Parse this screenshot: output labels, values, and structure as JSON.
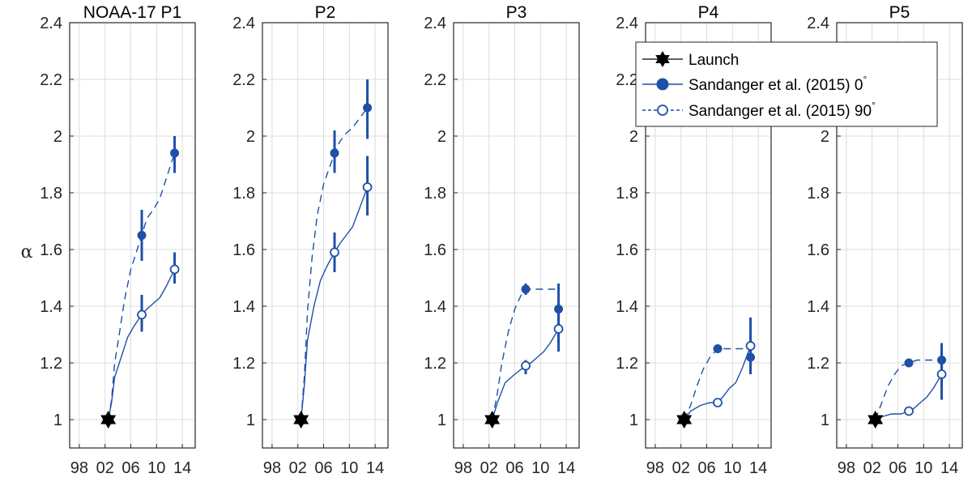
{
  "colors": {
    "series": "#1f4fa8",
    "launch": "#000000",
    "grid": "#dcdcdc",
    "axis": "#262626"
  },
  "ylabel": "α",
  "legend": {
    "placement": "top-right of P4 panel",
    "launch": "Launch",
    "entry_0deg": "Sandanger et al. (2015) 0",
    "entry_90deg": "Sandanger et al. (2015) 90",
    "degree_mark": "°"
  },
  "chart_data": [
    {
      "type": "line",
      "title": "NOAA-17 P1",
      "xlim": [
        1996.5,
        2016
      ],
      "xticks": [
        1998,
        2002,
        2006,
        2010,
        2014
      ],
      "xtick_labels": [
        "98",
        "02",
        "06",
        "10",
        "14"
      ],
      "ylim": [
        0.9,
        2.4
      ],
      "yticks": [
        1,
        1.2,
        1.4,
        1.6,
        1.8,
        2,
        2.2,
        2.4
      ],
      "ytick_labels": [
        "1",
        "1.2",
        "1.4",
        "1.6",
        "1.8",
        "2",
        "2.2",
        "2.4"
      ],
      "grid": true,
      "launch": {
        "x": 2002.5,
        "y": 1
      },
      "series": [
        {
          "name": "Sandanger et al. (2015) 0°",
          "style": "dashed",
          "marker": "filled",
          "curve": [
            [
              2002.5,
              1
            ],
            [
              2003,
              1.07
            ],
            [
              2003.5,
              1.2
            ],
            [
              2004.2,
              1.3
            ],
            [
              2005,
              1.42
            ],
            [
              2006,
              1.53
            ],
            [
              2007.7,
              1.65
            ],
            [
              2008.5,
              1.71
            ],
            [
              2009.5,
              1.74
            ],
            [
              2010.5,
              1.78
            ],
            [
              2011.5,
              1.85
            ],
            [
              2012.8,
              1.94
            ]
          ],
          "points": [
            {
              "x": 2007.7,
              "y": 1.65,
              "err": [
                1.56,
                1.74
              ]
            },
            {
              "x": 2012.8,
              "y": 1.94,
              "err": [
                1.87,
                2.0
              ]
            }
          ]
        },
        {
          "name": "Sandanger et al. (2015) 90°",
          "style": "solid",
          "marker": "open",
          "curve": [
            [
              2002.5,
              1
            ],
            [
              2003,
              1.06
            ],
            [
              2003.5,
              1.15
            ],
            [
              2004.5,
              1.22
            ],
            [
              2005.5,
              1.29
            ],
            [
              2006.5,
              1.33
            ],
            [
              2007.7,
              1.37
            ],
            [
              2008.5,
              1.39
            ],
            [
              2009.5,
              1.41
            ],
            [
              2010.5,
              1.43
            ],
            [
              2011.5,
              1.47
            ],
            [
              2012.8,
              1.53
            ]
          ],
          "points": [
            {
              "x": 2007.7,
              "y": 1.37,
              "err": [
                1.31,
                1.44
              ]
            },
            {
              "x": 2012.8,
              "y": 1.53,
              "err": [
                1.48,
                1.59
              ]
            }
          ]
        }
      ]
    },
    {
      "type": "line",
      "title": "P2",
      "xlim": [
        1996.5,
        2016
      ],
      "xticks": [
        1998,
        2002,
        2006,
        2010,
        2014
      ],
      "xtick_labels": [
        "98",
        "02",
        "06",
        "10",
        "14"
      ],
      "ylim": [
        0.9,
        2.4
      ],
      "yticks": [
        1,
        1.2,
        1.4,
        1.6,
        1.8,
        2,
        2.2,
        2.4
      ],
      "ytick_labels": [
        "1",
        "1.2",
        "1.4",
        "1.6",
        "1.8",
        "2",
        "2.2",
        "2.4"
      ],
      "grid": true,
      "launch": {
        "x": 2002.5,
        "y": 1
      },
      "series": [
        {
          "name": "Sandanger et al. (2015) 0°",
          "style": "dashed",
          "marker": "filled",
          "curve": [
            [
              2002.5,
              1
            ],
            [
              2003,
              1.15
            ],
            [
              2003.5,
              1.38
            ],
            [
              2004.2,
              1.57
            ],
            [
              2005,
              1.72
            ],
            [
              2006,
              1.83
            ],
            [
              2007.7,
              1.94
            ],
            [
              2008.5,
              1.98
            ],
            [
              2009.5,
              2.01
            ],
            [
              2010.5,
              2.03
            ],
            [
              2011.5,
              2.06
            ],
            [
              2012.8,
              2.1
            ]
          ],
          "points": [
            {
              "x": 2007.7,
              "y": 1.94,
              "err": [
                1.87,
                2.02
              ]
            },
            {
              "x": 2012.8,
              "y": 2.1,
              "err": [
                1.99,
                2.2
              ]
            }
          ]
        },
        {
          "name": "Sandanger et al. (2015) 90°",
          "style": "solid",
          "marker": "open",
          "curve": [
            [
              2002.5,
              1
            ],
            [
              2003,
              1.12
            ],
            [
              2003.5,
              1.28
            ],
            [
              2004.5,
              1.4
            ],
            [
              2005.5,
              1.49
            ],
            [
              2006.5,
              1.54
            ],
            [
              2007.7,
              1.59
            ],
            [
              2008.5,
              1.62
            ],
            [
              2009.5,
              1.65
            ],
            [
              2010.5,
              1.68
            ],
            [
              2011.5,
              1.74
            ],
            [
              2012.8,
              1.82
            ]
          ],
          "points": [
            {
              "x": 2007.7,
              "y": 1.59,
              "err": [
                1.52,
                1.66
              ]
            },
            {
              "x": 2012.8,
              "y": 1.82,
              "err": [
                1.72,
                1.93
              ]
            }
          ]
        }
      ]
    },
    {
      "type": "line",
      "title": "P3",
      "xlim": [
        1996.5,
        2016
      ],
      "xticks": [
        1998,
        2002,
        2006,
        2010,
        2014
      ],
      "xtick_labels": [
        "98",
        "02",
        "06",
        "10",
        "14"
      ],
      "ylim": [
        0.9,
        2.4
      ],
      "yticks": [
        1,
        1.2,
        1.4,
        1.6,
        1.8,
        2,
        2.2,
        2.4
      ],
      "ytick_labels": [
        "1",
        "1.2",
        "1.4",
        "1.6",
        "1.8",
        "2",
        "2.2",
        "2.4"
      ],
      "grid": true,
      "launch": {
        "x": 2002.5,
        "y": 1
      },
      "series": [
        {
          "name": "Sandanger et al. (2015) 0°",
          "style": "dashed",
          "marker": "filled",
          "curve": [
            [
              2002.5,
              1
            ],
            [
              2003.2,
              1.08
            ],
            [
              2004,
              1.2
            ],
            [
              2005,
              1.31
            ],
            [
              2006,
              1.39
            ],
            [
              2007,
              1.44
            ],
            [
              2007.7,
              1.46
            ],
            [
              2009,
              1.46
            ],
            [
              2010.5,
              1.46
            ],
            [
              2012.8,
              1.46
            ]
          ],
          "points": [
            {
              "x": 2007.7,
              "y": 1.46,
              "err": [
                1.44,
                1.48
              ]
            },
            {
              "x": 2012.8,
              "y": 1.39,
              "err": [
                1.29,
                1.48
              ]
            }
          ]
        },
        {
          "name": "Sandanger et al. (2015) 90°",
          "style": "solid",
          "marker": "open",
          "curve": [
            [
              2002.5,
              1
            ],
            [
              2003.3,
              1.06
            ],
            [
              2004.5,
              1.13
            ],
            [
              2006,
              1.16
            ],
            [
              2007.7,
              1.19
            ],
            [
              2008.5,
              1.2
            ],
            [
              2009.5,
              1.22
            ],
            [
              2010.5,
              1.24
            ],
            [
              2011.5,
              1.27
            ],
            [
              2012.8,
              1.32
            ]
          ],
          "points": [
            {
              "x": 2007.7,
              "y": 1.19,
              "err": [
                1.16,
                1.21
              ]
            },
            {
              "x": 2012.8,
              "y": 1.32,
              "err": [
                1.24,
                1.39
              ]
            }
          ]
        }
      ]
    },
    {
      "type": "line",
      "title": "P4",
      "xlim": [
        1996.5,
        2016
      ],
      "xticks": [
        1998,
        2002,
        2006,
        2010,
        2014
      ],
      "xtick_labels": [
        "98",
        "02",
        "06",
        "10",
        "14"
      ],
      "ylim": [
        0.9,
        2.4
      ],
      "yticks": [
        1,
        1.2,
        1.4,
        1.6,
        1.8,
        2,
        2.2,
        2.4
      ],
      "ytick_labels": [
        "1",
        "1.2",
        "1.4",
        "1.6",
        "1.8",
        "2",
        "2.2",
        "2.4"
      ],
      "grid": true,
      "launch": {
        "x": 2002.5,
        "y": 1
      },
      "series": [
        {
          "name": "Sandanger et al. (2015) 0°",
          "style": "dashed",
          "marker": "filled",
          "curve": [
            [
              2002.5,
              1
            ],
            [
              2003.5,
              1.05
            ],
            [
              2004.5,
              1.12
            ],
            [
              2005.5,
              1.18
            ],
            [
              2006.5,
              1.22
            ],
            [
              2007.7,
              1.25
            ],
            [
              2009,
              1.25
            ],
            [
              2010.5,
              1.25
            ],
            [
              2012.8,
              1.25
            ]
          ],
          "points": [
            {
              "x": 2007.7,
              "y": 1.25,
              "err": [
                1.24,
                1.26
              ]
            },
            {
              "x": 2012.8,
              "y": 1.22,
              "err": [
                1.16,
                1.28
              ]
            }
          ]
        },
        {
          "name": "Sandanger et al. (2015) 90°",
          "style": "solid",
          "marker": "open",
          "curve": [
            [
              2002.5,
              1
            ],
            [
              2003.5,
              1.03
            ],
            [
              2005,
              1.05
            ],
            [
              2006.5,
              1.06
            ],
            [
              2007.7,
              1.06
            ],
            [
              2008.5,
              1.08
            ],
            [
              2009.5,
              1.11
            ],
            [
              2010.5,
              1.13
            ],
            [
              2011.5,
              1.18
            ],
            [
              2012.8,
              1.26
            ]
          ],
          "points": [
            {
              "x": 2007.7,
              "y": 1.06,
              "err": [
                1.05,
                1.07
              ]
            },
            {
              "x": 2012.8,
              "y": 1.26,
              "err": [
                1.17,
                1.36
              ]
            }
          ]
        }
      ]
    },
    {
      "type": "line",
      "title": "P5",
      "xlim": [
        1996.5,
        2016
      ],
      "xticks": [
        1998,
        2002,
        2006,
        2010,
        2014
      ],
      "xtick_labels": [
        "98",
        "02",
        "06",
        "10",
        "14"
      ],
      "ylim": [
        0.9,
        2.4
      ],
      "yticks": [
        1,
        1.2,
        1.4,
        1.6,
        1.8,
        2,
        2.2,
        2.4
      ],
      "ytick_labels": [
        "1",
        "1.2",
        "1.4",
        "1.6",
        "1.8",
        "2",
        "2.2",
        "2.4"
      ],
      "grid": true,
      "launch": {
        "x": 2002.5,
        "y": 1
      },
      "series": [
        {
          "name": "Sandanger et al. (2015) 0°",
          "style": "dashed",
          "marker": "filled",
          "curve": [
            [
              2002.5,
              1
            ],
            [
              2003.5,
              1.06
            ],
            [
              2004.5,
              1.12
            ],
            [
              2005.5,
              1.16
            ],
            [
              2006.5,
              1.19
            ],
            [
              2007.7,
              1.2
            ],
            [
              2009,
              1.21
            ],
            [
              2010.5,
              1.21
            ],
            [
              2012.8,
              1.21
            ]
          ],
          "points": [
            {
              "x": 2007.7,
              "y": 1.2,
              "err": [
                1.19,
                1.21
              ]
            },
            {
              "x": 2012.8,
              "y": 1.21,
              "err": [
                1.16,
                1.27
              ]
            }
          ]
        },
        {
          "name": "Sandanger et al. (2015) 90°",
          "style": "solid",
          "marker": "open",
          "curve": [
            [
              2002.5,
              1
            ],
            [
              2003.5,
              1.01
            ],
            [
              2005,
              1.02
            ],
            [
              2006.5,
              1.02
            ],
            [
              2007.7,
              1.03
            ],
            [
              2008.5,
              1.04
            ],
            [
              2009.5,
              1.06
            ],
            [
              2010.5,
              1.08
            ],
            [
              2011.5,
              1.11
            ],
            [
              2012.8,
              1.16
            ]
          ],
          "points": [
            {
              "x": 2007.7,
              "y": 1.03,
              "err": [
                1.02,
                1.04
              ]
            },
            {
              "x": 2012.8,
              "y": 1.16,
              "err": [
                1.07,
                1.24
              ]
            }
          ]
        }
      ]
    }
  ]
}
